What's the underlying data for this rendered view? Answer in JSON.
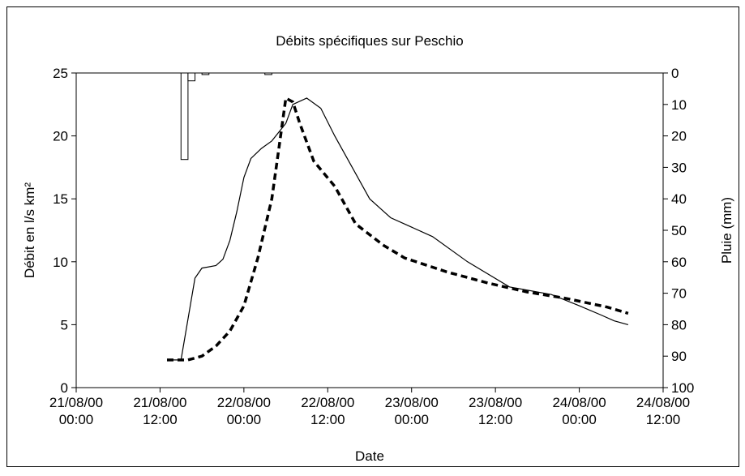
{
  "chart_data": {
    "type": "line",
    "title": "Débits spécifiques sur Peschio",
    "xlabel": "Date",
    "ylabel": "Débit en l/s km²",
    "y2label": "Pluie (mm)",
    "xlim": [
      0,
      84
    ],
    "xticks": [
      {
        "value": 0,
        "label": "21/08/00 00:00"
      },
      {
        "value": 12,
        "label": "21/08/00 12:00"
      },
      {
        "value": 24,
        "label": "22/08/00 00:00"
      },
      {
        "value": 36,
        "label": "22/08/00 12:00"
      },
      {
        "value": 48,
        "label": "23/08/00 00:00"
      },
      {
        "value": 60,
        "label": "23/08/00 12:00"
      },
      {
        "value": 72,
        "label": "24/08/00 00:00"
      },
      {
        "value": 84,
        "label": "24/08/00 12:00"
      }
    ],
    "ylim": [
      0,
      25
    ],
    "yticks": [
      0,
      5,
      10,
      15,
      20,
      25
    ],
    "y2lim": [
      0,
      100
    ],
    "y2ticks": [
      0,
      10,
      20,
      30,
      40,
      50,
      60,
      70,
      80,
      90,
      100
    ],
    "y2_inverted": true,
    "series": [
      {
        "color": "#000000",
        "dashed": false,
        "x": [
          13,
          15,
          17,
          18,
          20,
          21,
          22,
          23,
          24,
          25,
          26.5,
          28,
          30,
          31,
          33,
          35,
          37,
          40,
          42,
          44,
          45,
          51,
          56,
          62,
          68,
          72,
          75,
          77,
          79
        ],
        "values": [
          2.2,
          2.2,
          8.7,
          9.5,
          9.7,
          10.2,
          11.7,
          14,
          16.7,
          18.2,
          19,
          19.6,
          21,
          22.5,
          23,
          22.2,
          20,
          17,
          15,
          14,
          13.5,
          12,
          10,
          8,
          7.4,
          6.5,
          5.8,
          5.3,
          5
        ]
      },
      {
        "color": "#000000",
        "dashed": true,
        "x": [
          13,
          16,
          18,
          20,
          22,
          24,
          26,
          28,
          29,
          30,
          31,
          32,
          34,
          37,
          40,
          44,
          47,
          53,
          59,
          64.5,
          70,
          76,
          79
        ],
        "values": [
          2.2,
          2.2,
          2.5,
          3.3,
          4.5,
          6.5,
          10.3,
          15,
          19,
          23,
          22.7,
          21,
          18,
          16,
          13,
          11.3,
          10.3,
          9.2,
          8.3,
          7.6,
          7.1,
          6.4,
          5.9
        ]
      },
      {
        "type": "bar",
        "axis": "y2",
        "color": "#ffffff",
        "x": [
          15,
          16,
          18,
          27
        ],
        "values": [
          27.5,
          2.5,
          0.5,
          0.5
        ]
      }
    ]
  }
}
